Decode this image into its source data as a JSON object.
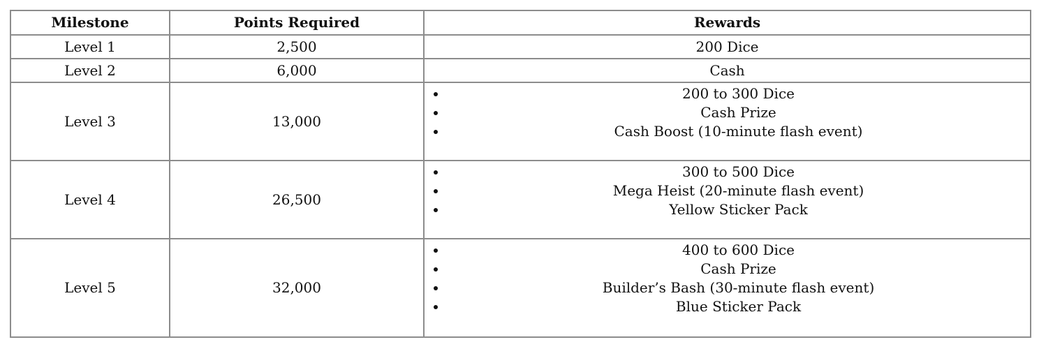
{
  "table": {
    "headers": [
      "Milestone",
      "Points Required",
      "Rewards"
    ],
    "rows": [
      {
        "milestone": "Level 1",
        "points": "2,500",
        "rewards": [
          "200 Dice"
        ]
      },
      {
        "milestone": "Level 2",
        "points": "6,000",
        "rewards": [
          "Cash"
        ]
      },
      {
        "milestone": "Level 3",
        "points": "13,000",
        "rewards": [
          "200 to 300 Dice",
          "Cash Prize",
          "Cash Boost (10-minute flash event)"
        ]
      },
      {
        "milestone": "Level 4",
        "points": "26,500",
        "rewards": [
          "300 to 500 Dice",
          "Mega Heist (20-minute flash event)",
          "Yellow Sticker Pack"
        ]
      },
      {
        "milestone": "Level 5",
        "points": "32,000",
        "rewards": [
          "400 to 600 Dice",
          "Cash Prize",
          "Builder’s Bash (30-minute flash event)",
          "Blue Sticker Pack"
        ]
      }
    ]
  }
}
